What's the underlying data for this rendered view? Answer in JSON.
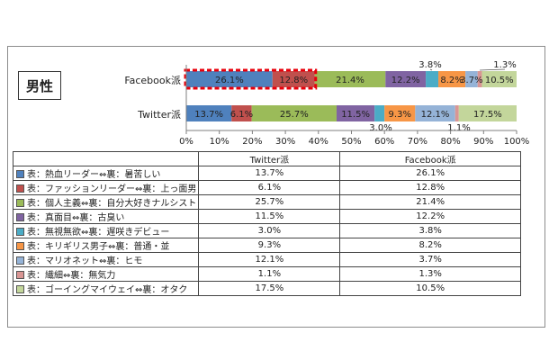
{
  "panel_title": "男性",
  "chart_data": {
    "type": "bar",
    "orientation": "horizontal",
    "stacked": "percent",
    "categories": [
      "Facebook派",
      "Twitter派"
    ],
    "xlim": [
      0,
      100
    ],
    "x_ticks": [
      "0%",
      "10%",
      "20%",
      "30%",
      "40%",
      "50%",
      "60%",
      "70%",
      "80%",
      "90%",
      "100%"
    ],
    "grid": false,
    "legend": "data table below chart",
    "highlight": {
      "category": "Facebook派",
      "segments": [
        "表：熱血リーダー⇔裏：暑苦しい",
        "表：ファッションリーダー⇔裏：上っ面男"
      ],
      "color": "#e8000b",
      "style": "dashed outline"
    },
    "series": [
      {
        "name": "表：熱血リーダー⇔裏：暑苦しい",
        "color": "#4f81bd",
        "values": [
          26.1,
          13.7
        ]
      },
      {
        "name": "表：ファッションリーダー⇔裏：上っ面男",
        "color": "#c0504d",
        "values": [
          12.8,
          6.1
        ]
      },
      {
        "name": "表：個人主義⇔裏：自分大好きナルシスト",
        "color": "#9bbb59",
        "values": [
          21.4,
          25.7
        ]
      },
      {
        "name": "表：真面目⇔裏：古臭い",
        "color": "#8064a2",
        "values": [
          12.2,
          11.5
        ]
      },
      {
        "name": "表：無視無欲⇔裏：遅咲きデビュー",
        "color": "#4bacc6",
        "values": [
          3.8,
          3.0
        ]
      },
      {
        "name": "表：キリギリス男子⇔裏：普通・並",
        "color": "#f79646",
        "values": [
          8.2,
          9.3
        ]
      },
      {
        "name": "表：マリオネット⇔裏：ヒモ",
        "color": "#95b3d7",
        "values": [
          3.7,
          12.1
        ]
      },
      {
        "name": "表：繊細⇔裏：無気力",
        "color": "#d99694",
        "values": [
          1.3,
          1.1
        ]
      },
      {
        "name": "表：ゴーイングマイウェイ⇔裏：オタク",
        "color": "#c3d69b",
        "values": [
          10.5,
          17.5
        ]
      }
    ],
    "data_labels": [
      [
        "26.1%",
        "12.8%",
        "21.4%",
        "12.2%",
        "3.8%",
        "8.2%",
        "3.7%",
        "1.3%",
        "10.5%"
      ],
      [
        "13.7%",
        "6.1%",
        "25.7%",
        "11.5%",
        "3.0%",
        "9.3%",
        "12.1%",
        "1.1%",
        "17.5%"
      ]
    ]
  },
  "table": {
    "headers": [
      "Twitter派",
      "Facebook派"
    ],
    "rows": [
      {
        "label": "表：熱血リーダー⇔裏：暑苦しい",
        "twitter": "13.7%",
        "facebook": "26.1%"
      },
      {
        "label": "表：ファッションリーダー⇔裏：上っ面男",
        "twitter": "6.1%",
        "facebook": "12.8%"
      },
      {
        "label": "表：個人主義⇔裏：自分大好きナルシスト",
        "twitter": "25.7%",
        "facebook": "21.4%"
      },
      {
        "label": "表：真面目⇔裏：古臭い",
        "twitter": "11.5%",
        "facebook": "12.2%"
      },
      {
        "label": "表：無視無欲⇔裏：遅咲きデビュー",
        "twitter": "3.0%",
        "facebook": "3.8%"
      },
      {
        "label": "表：キリギリス男子⇔裏：普通・並",
        "twitter": "9.3%",
        "facebook": "8.2%"
      },
      {
        "label": "表：マリオネット⇔裏：ヒモ",
        "twitter": "12.1%",
        "facebook": "3.7%"
      },
      {
        "label": "表：繊細⇔裏：無気力",
        "twitter": "1.1%",
        "facebook": "1.3%"
      },
      {
        "label": "表：ゴーイングマイウェイ⇔裏：オタク",
        "twitter": "17.5%",
        "facebook": "10.5%"
      }
    ]
  }
}
